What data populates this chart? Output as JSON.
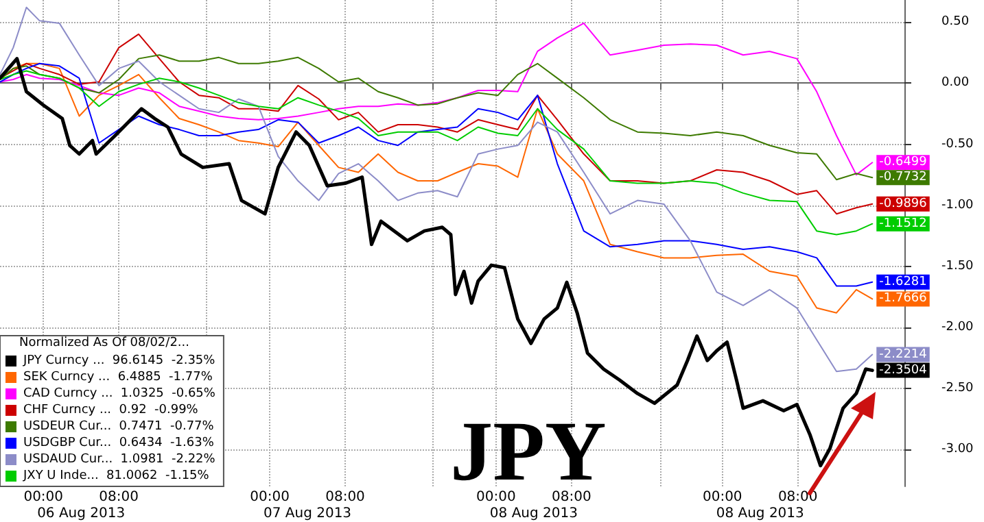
{
  "chart_data": {
    "type": "line",
    "legend_title": "Normalized As Of 08/02/2...",
    "x": [
      "2013-08-05T19:24",
      "2013-08-05T20:48",
      "2013-08-05T22:12",
      "2013-08-05T23:36",
      "2013-08-06T01:42",
      "2013-08-06T03:48",
      "2013-08-06T05:54",
      "2013-08-06T08:00",
      "2013-08-06T10:06",
      "2013-08-06T12:18",
      "2013-08-06T14:24",
      "2013-08-06T16:30",
      "2013-08-06T18:36",
      "2013-08-06T20:42",
      "2013-08-06T22:48",
      "2013-08-07T00:54",
      "2013-08-07T03:00",
      "2013-08-07T05:12",
      "2013-08-07T07:18",
      "2013-08-07T09:24",
      "2013-08-07T11:30",
      "2013-08-07T13:36",
      "2013-08-07T15:42",
      "2013-08-07T17:48",
      "2013-08-07T19:54",
      "2013-08-07T22:06",
      "2013-08-08T00:12",
      "2013-08-08T02:18",
      "2013-08-08T04:24",
      "2013-08-08T06:30",
      "2013-08-08T09:18",
      "2013-08-08T12:06",
      "2013-08-08T15:00",
      "2013-08-08T17:48",
      "2013-08-08T20:36",
      "2013-08-08T23:24",
      "2013-08-09T02:12",
      "2013-08-09T05:00",
      "2013-08-09T07:54",
      "2013-08-09T10:00",
      "2013-08-09T12:06",
      "2013-08-09T14:12",
      "2013-08-09T15:54"
    ],
    "series": [
      {
        "name": "JPY Curncy ...  96.6145  -2.35%",
        "color": "#000000",
        "x": [
          "2013-08-05T19:24",
          "2013-08-05T21:12",
          "2013-08-05T22:12",
          "2013-08-06T00:00",
          "2013-08-06T02:00",
          "2013-08-06T02:48",
          "2013-08-06T03:48",
          "2013-08-06T05:12",
          "2013-08-06T05:36",
          "2013-08-06T07:36",
          "2013-08-06T09:00",
          "2013-08-06T10:24",
          "2013-08-06T11:48",
          "2013-08-06T13:12",
          "2013-08-06T14:36",
          "2013-08-06T16:54",
          "2013-08-06T19:42",
          "2013-08-06T21:00",
          "2013-08-06T23:30",
          "2013-08-07T00:54",
          "2013-08-07T02:48",
          "2013-08-07T04:12",
          "2013-08-07T06:06",
          "2013-08-07T08:00",
          "2013-08-07T09:48",
          "2013-08-07T10:48",
          "2013-08-07T11:48",
          "2013-08-07T14:36",
          "2013-08-07T16:24",
          "2013-08-07T18:18",
          "2013-08-07T19:12",
          "2013-08-07T19:42",
          "2013-08-07T20:36",
          "2013-08-07T21:24",
          "2013-08-07T22:06",
          "2013-08-07T23:30",
          "2013-08-08T00:54",
          "2013-08-08T02:18",
          "2013-08-08T03:42",
          "2013-08-08T05:06",
          "2013-08-08T06:30",
          "2013-08-08T07:30",
          "2013-08-08T08:36",
          "2013-08-08T09:42",
          "2013-08-08T11:24",
          "2013-08-08T13:06",
          "2013-08-08T15:00",
          "2013-08-08T16:48",
          "2013-08-08T19:12",
          "2013-08-08T20:18",
          "2013-08-08T21:18",
          "2013-08-08T22:24",
          "2013-08-08T23:24",
          "2013-08-09T00:30",
          "2013-08-09T01:30",
          "2013-08-09T02:12",
          "2013-08-09T04:18",
          "2013-08-09T06:30",
          "2013-08-09T07:54",
          "2013-08-09T09:18",
          "2013-08-09T10:24",
          "2013-08-09T11:24",
          "2013-08-09T12:48",
          "2013-08-09T14:12",
          "2013-08-09T15:12",
          "2013-08-09T15:54"
        ],
        "values": [
          0.04,
          0.2,
          -0.07,
          -0.18,
          -0.29,
          -0.51,
          -0.58,
          -0.47,
          -0.58,
          -0.43,
          -0.32,
          -0.21,
          -0.29,
          -0.36,
          -0.58,
          -0.69,
          -0.66,
          -0.96,
          -1.07,
          -0.69,
          -0.4,
          -0.51,
          -0.84,
          -0.82,
          -0.77,
          -1.32,
          -1.13,
          -1.29,
          -1.21,
          -1.18,
          -1.24,
          -1.73,
          -1.54,
          -1.8,
          -1.62,
          -1.49,
          -1.51,
          -1.93,
          -2.13,
          -1.93,
          -1.84,
          -1.63,
          -1.88,
          -2.21,
          -2.34,
          -2.43,
          -2.54,
          -2.62,
          -2.47,
          -2.27,
          -2.07,
          -2.27,
          -2.19,
          -2.12,
          -2.43,
          -2.66,
          -2.6,
          -2.68,
          -2.63,
          -2.88,
          -3.13,
          -2.99,
          -2.66,
          -2.54,
          -2.34,
          -2.3504
        ],
        "value_labels": [
          null,
          null,
          null,
          null,
          null,
          null,
          null,
          null,
          null,
          null,
          null,
          null,
          null,
          null,
          null,
          null,
          null,
          null,
          null,
          null,
          null,
          null,
          null,
          null,
          null,
          null,
          null,
          null,
          null,
          null,
          null,
          null,
          null,
          null,
          null,
          null,
          null,
          null,
          null,
          null,
          null,
          null,
          null,
          null,
          null,
          null,
          null,
          null,
          null,
          null,
          null,
          null,
          null,
          null,
          null,
          null,
          null,
          null,
          null,
          null,
          null,
          null,
          null,
          null,
          null,
          "-2.3504"
        ]
      },
      {
        "name": "SEK Curncy ...  6.4885  -1.77%",
        "color": "#ff6600",
        "values": [
          0.03,
          0.12,
          0.16,
          0.16,
          0.12,
          -0.27,
          -0.1,
          -0.02,
          0.07,
          -0.12,
          -0.29,
          -0.34,
          -0.4,
          -0.47,
          -0.49,
          -0.52,
          -0.32,
          -0.51,
          -0.69,
          -0.73,
          -0.58,
          -0.73,
          -0.8,
          -0.8,
          -0.73,
          -0.66,
          -0.68,
          -0.77,
          -0.21,
          -0.58,
          -0.8,
          -1.32,
          -1.38,
          -1.43,
          -1.43,
          -1.41,
          -1.4,
          -1.54,
          -1.58,
          -1.84,
          -1.88,
          -1.69,
          -1.7666
        ],
        "value_labels": [
          null,
          null,
          null,
          null,
          null,
          null,
          null,
          null,
          null,
          null,
          null,
          null,
          null,
          null,
          null,
          null,
          null,
          null,
          null,
          null,
          null,
          null,
          null,
          null,
          null,
          null,
          null,
          null,
          null,
          null,
          null,
          null,
          null,
          null,
          null,
          null,
          null,
          null,
          null,
          null,
          null,
          null,
          "-1.7666"
        ]
      },
      {
        "name": "CAD Curncy ...  1.0325  -0.65%",
        "color": "#ff00ff",
        "values": [
          0.01,
          0.03,
          0.07,
          0.04,
          0.03,
          -0.02,
          -0.08,
          -0.1,
          -0.04,
          -0.08,
          -0.19,
          -0.23,
          -0.27,
          -0.29,
          -0.3,
          -0.29,
          -0.27,
          -0.24,
          -0.21,
          -0.19,
          -0.19,
          -0.17,
          -0.18,
          -0.16,
          -0.12,
          -0.06,
          -0.06,
          -0.07,
          0.26,
          0.37,
          0.49,
          0.23,
          0.27,
          0.31,
          0.32,
          0.31,
          0.23,
          0.26,
          0.2,
          -0.07,
          -0.43,
          -0.75,
          -0.6499
        ],
        "value_labels": [
          null,
          null,
          null,
          null,
          null,
          null,
          null,
          null,
          null,
          null,
          null,
          null,
          null,
          null,
          null,
          null,
          null,
          null,
          null,
          null,
          null,
          null,
          null,
          null,
          null,
          null,
          null,
          null,
          null,
          null,
          null,
          null,
          null,
          null,
          null,
          null,
          null,
          null,
          null,
          null,
          null,
          null,
          "-0.6499"
        ]
      },
      {
        "name": "CHF Curncy ...  0.92  -0.99%",
        "color": "#cc0000",
        "values": [
          0.04,
          0.1,
          0.16,
          0.12,
          0.07,
          -0.01,
          0.01,
          0.29,
          0.4,
          0.2,
          0.01,
          -0.1,
          -0.12,
          -0.21,
          -0.21,
          -0.23,
          -0.02,
          -0.13,
          -0.3,
          -0.24,
          -0.4,
          -0.34,
          -0.34,
          -0.36,
          -0.4,
          -0.3,
          -0.34,
          -0.38,
          -0.1,
          -0.3,
          -0.58,
          -0.8,
          -0.8,
          -0.82,
          -0.8,
          -0.71,
          -0.73,
          -0.8,
          -0.91,
          -0.88,
          -1.07,
          -1.02,
          -0.9896
        ],
        "value_labels": [
          null,
          null,
          null,
          null,
          null,
          null,
          null,
          null,
          null,
          null,
          null,
          null,
          null,
          null,
          null,
          null,
          null,
          null,
          null,
          null,
          null,
          null,
          null,
          null,
          null,
          null,
          null,
          null,
          null,
          null,
          null,
          null,
          null,
          null,
          null,
          null,
          null,
          null,
          null,
          null,
          null,
          null,
          "-0.9896"
        ]
      },
      {
        "name": "USDEUR Cur...  0.7471  -0.77%",
        "color": "#3d7a00",
        "values": [
          0.03,
          0.12,
          0.14,
          0.07,
          0.04,
          -0.04,
          -0.08,
          0.03,
          0.2,
          0.23,
          0.18,
          0.18,
          0.21,
          0.16,
          0.16,
          0.18,
          0.21,
          0.12,
          0.01,
          0.04,
          -0.07,
          -0.12,
          -0.18,
          -0.17,
          -0.12,
          -0.08,
          -0.1,
          0.07,
          0.16,
          0.04,
          -0.12,
          -0.3,
          -0.4,
          -0.41,
          -0.43,
          -0.4,
          -0.43,
          -0.51,
          -0.57,
          -0.58,
          -0.79,
          -0.74,
          -0.7732
        ],
        "value_labels": [
          null,
          null,
          null,
          null,
          null,
          null,
          null,
          null,
          null,
          null,
          null,
          null,
          null,
          null,
          null,
          null,
          null,
          null,
          null,
          null,
          null,
          null,
          null,
          null,
          null,
          null,
          null,
          null,
          null,
          null,
          null,
          null,
          null,
          null,
          null,
          null,
          null,
          null,
          null,
          null,
          null,
          null,
          "-0.7732"
        ]
      },
      {
        "name": "USDGBP Cur...  0.6434  -1.63%",
        "color": "#0000ff",
        "values": [
          0.01,
          0.07,
          0.12,
          0.16,
          0.14,
          0.04,
          -0.49,
          -0.38,
          -0.27,
          -0.34,
          -0.38,
          -0.43,
          -0.43,
          -0.4,
          -0.38,
          -0.3,
          -0.32,
          -0.49,
          -0.43,
          -0.36,
          -0.47,
          -0.51,
          -0.4,
          -0.38,
          -0.36,
          -0.21,
          -0.24,
          -0.3,
          -0.1,
          -0.66,
          -1.21,
          -1.34,
          -1.32,
          -1.29,
          -1.29,
          -1.32,
          -1.36,
          -1.34,
          -1.38,
          -1.43,
          -1.66,
          -1.66,
          -1.6281
        ],
        "value_labels": [
          null,
          null,
          null,
          null,
          null,
          null,
          null,
          null,
          null,
          null,
          null,
          null,
          null,
          null,
          null,
          null,
          null,
          null,
          null,
          null,
          null,
          null,
          null,
          null,
          null,
          null,
          null,
          null,
          null,
          null,
          null,
          null,
          null,
          null,
          null,
          null,
          null,
          null,
          null,
          null,
          null,
          null,
          "-1.6281"
        ]
      },
      {
        "name": "USDAUD Cur...  1.0981  -2.22%",
        "color": "#8c8cc8",
        "values": [
          0.07,
          0.29,
          0.62,
          0.51,
          0.49,
          0.23,
          -0.02,
          0.12,
          0.18,
          0.01,
          -0.1,
          -0.21,
          -0.24,
          -0.13,
          -0.19,
          -0.6,
          -0.8,
          -0.96,
          -0.74,
          -0.66,
          -0.8,
          -0.96,
          -0.9,
          -0.88,
          -0.93,
          -0.58,
          -0.54,
          -0.51,
          -0.32,
          -0.4,
          -0.73,
          -1.07,
          -0.96,
          -0.99,
          -1.29,
          -1.71,
          -1.82,
          -1.69,
          -1.84,
          -2.1,
          -2.36,
          -2.34,
          -2.2214
        ],
        "value_labels": [
          null,
          null,
          null,
          null,
          null,
          null,
          null,
          null,
          null,
          null,
          null,
          null,
          null,
          null,
          null,
          null,
          null,
          null,
          null,
          null,
          null,
          null,
          null,
          null,
          null,
          null,
          null,
          null,
          null,
          null,
          null,
          null,
          null,
          null,
          null,
          null,
          null,
          null,
          null,
          null,
          null,
          null,
          "-2.2214"
        ]
      },
      {
        "name": "JXY U Inde...  81.0062  -1.15%",
        "color": "#00cc00",
        "values": [
          0.03,
          0.07,
          0.1,
          0.07,
          0.04,
          -0.04,
          -0.19,
          -0.07,
          -0.01,
          0.04,
          0.01,
          -0.04,
          -0.1,
          -0.16,
          -0.19,
          -0.21,
          -0.12,
          -0.18,
          -0.23,
          -0.29,
          -0.43,
          -0.4,
          -0.4,
          -0.4,
          -0.47,
          -0.36,
          -0.41,
          -0.43,
          -0.21,
          -0.38,
          -0.54,
          -0.8,
          -0.82,
          -0.82,
          -0.8,
          -0.82,
          -0.9,
          -0.96,
          -0.97,
          -1.21,
          -1.24,
          -1.21,
          -1.1512
        ],
        "value_labels": [
          null,
          null,
          null,
          null,
          null,
          null,
          null,
          null,
          null,
          null,
          null,
          null,
          null,
          null,
          null,
          null,
          null,
          null,
          null,
          null,
          null,
          null,
          null,
          null,
          null,
          null,
          null,
          null,
          null,
          null,
          null,
          null,
          null,
          null,
          null,
          null,
          null,
          null,
          null,
          null,
          null,
          null,
          "-1.1512"
        ]
      }
    ],
    "xlim": [
      "2013-08-05T19:24",
      "2013-08-09T19:18"
    ],
    "xticks": [
      {
        "value": "2013-08-06T00:00",
        "label": "00:00"
      },
      {
        "value": "2013-08-06T08:00",
        "label": "08:00"
      },
      {
        "value": "2013-08-06T17:18",
        "label": null
      },
      {
        "value": "2013-08-07T00:00",
        "label": "00:00"
      },
      {
        "value": "2013-08-07T08:00",
        "label": "08:00"
      },
      {
        "value": "2013-08-07T17:18",
        "label": null
      },
      {
        "value": "2013-08-08T00:00",
        "label": "00:00"
      },
      {
        "value": "2013-08-08T08:00",
        "label": "08:00"
      },
      {
        "value": "2013-08-08T17:24",
        "label": null
      },
      {
        "value": "2013-08-09T00:00",
        "label": "00:00"
      },
      {
        "value": "2013-08-09T08:00",
        "label": "08:00"
      }
    ],
    "ylim": [
      -3.3,
      0.68
    ],
    "yticks": [
      {
        "value": 0.5,
        "label": "0.50"
      },
      {
        "value": 0,
        "label": "0.00"
      },
      {
        "value": -0.5,
        "label": "-0.50"
      },
      {
        "value": -1,
        "label": "-1.00"
      },
      {
        "value": -1.5,
        "label": "-1.50"
      },
      {
        "value": -2,
        "label": "-2.00"
      },
      {
        "value": -2.5,
        "label": "-2.50"
      },
      {
        "value": -3,
        "label": "-3.00"
      }
    ],
    "annotations": [
      "06 Aug 2013",
      "07 Aug 2013",
      "08 Aug 2013",
      "08 Aug 2013",
      "JPY"
    ],
    "grid": true,
    "legend": "bottom left",
    "marker": "none",
    "line_style": "solid"
  }
}
